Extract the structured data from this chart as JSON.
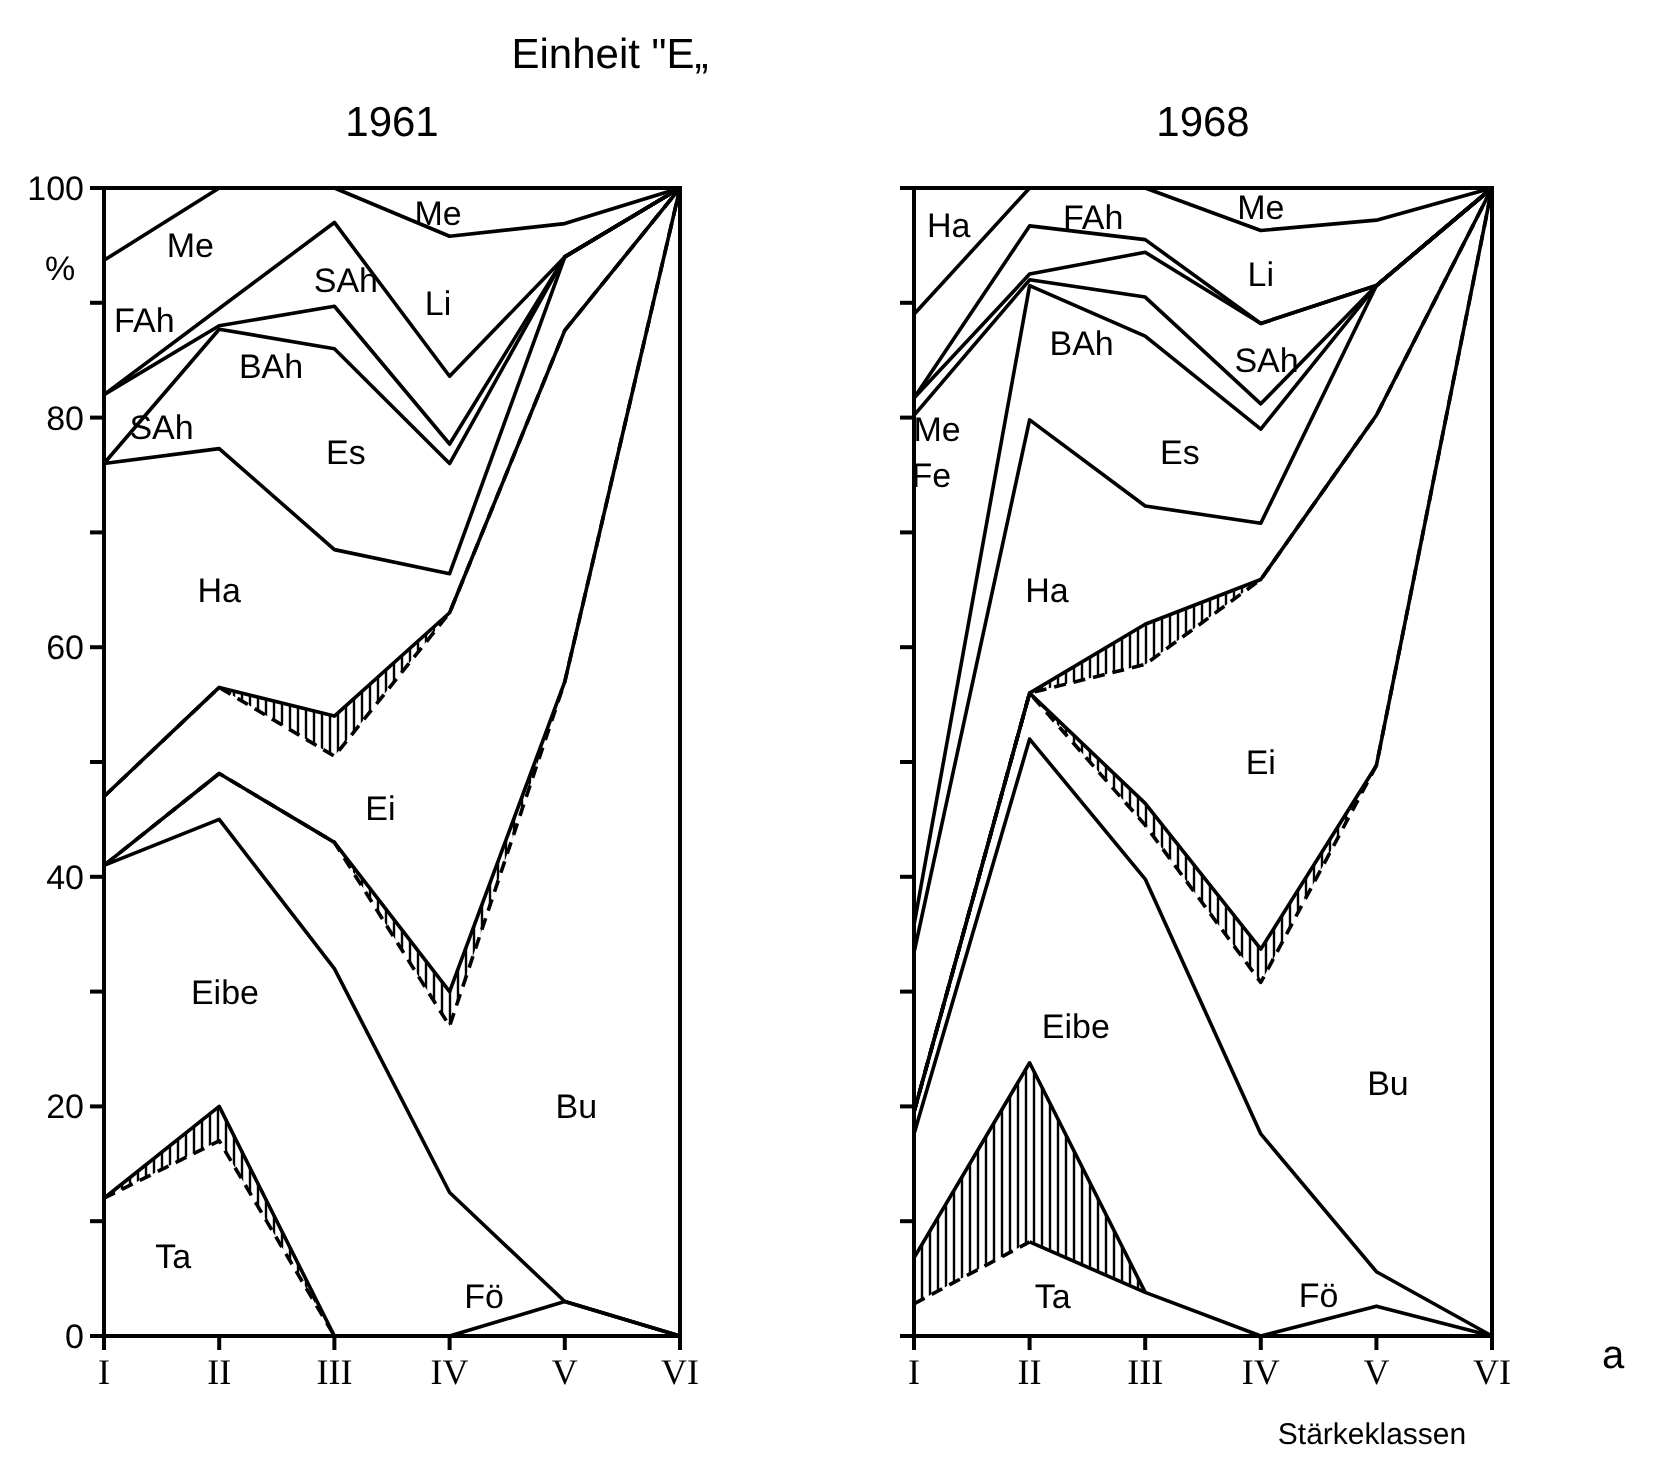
{
  "chart_data": [
    {
      "type": "line",
      "title": "Einheit \"E„",
      "subtitle": "1961",
      "ylabel": "%",
      "categories": [
        "I",
        "II",
        "III",
        "IV",
        "V",
        "VI"
      ],
      "ylim": [
        0,
        100
      ],
      "yticks": [
        0,
        {
          "value": 10,
          "label": null
        },
        20,
        {
          "value": 30,
          "label": null
        },
        40,
        {
          "value": 50,
          "label": null
        },
        60,
        {
          "value": 70,
          "label": null
        },
        80,
        {
          "value": 90,
          "label": null
        },
        100
      ],
      "grid": false,
      "series": [
        {
          "color": "#000000",
          "values": [
            null,
            null,
            null,
            0,
            3,
            0
          ]
        },
        {
          "color": "#000000",
          "values": [
            12,
            20,
            0,
            null,
            null,
            null
          ],
          "lower": [
            12,
            17,
            0,
            null,
            null,
            null
          ],
          "upper": [
            12,
            20,
            0,
            null,
            null,
            null
          ]
        },
        {
          "color": "#000000",
          "line_style": "dashed",
          "values": [
            12,
            17,
            0,
            null,
            null,
            null
          ]
        },
        {
          "color": "#000000",
          "values": [
            41,
            45,
            32,
            12.5,
            3,
            0
          ]
        },
        {
          "color": "#000000",
          "values": [
            41,
            49,
            43,
            30,
            57,
            100
          ],
          "lower": [
            41,
            49,
            43,
            27,
            57,
            100
          ],
          "upper": [
            41,
            49,
            43,
            30,
            57,
            100
          ]
        },
        {
          "color": "#000000",
          "line_style": "dashed",
          "values": [
            41,
            49,
            43,
            27,
            57,
            100
          ]
        },
        {
          "color": "#000000",
          "values": [
            47,
            56.5,
            54,
            63,
            87.6,
            100
          ],
          "lower": [
            47,
            56.5,
            50.5,
            63,
            87.6,
            100
          ],
          "upper": [
            47,
            56.5,
            54,
            63,
            87.6,
            100
          ]
        },
        {
          "color": "#000000",
          "line_style": "dashed",
          "values": [
            47,
            56.5,
            50.5,
            63,
            87.6,
            100
          ]
        },
        {
          "color": "#000000",
          "values": [
            76,
            77.3,
            68.5,
            66.4,
            94,
            100
          ]
        },
        {
          "color": "#000000",
          "values": [
            76,
            87.7,
            86,
            76,
            94,
            100
          ]
        },
        {
          "color": "#000000",
          "values": [
            82,
            88,
            89.7,
            77.7,
            94,
            100
          ]
        },
        {
          "color": "#000000",
          "values": [
            82,
            89.5,
            97,
            83.6,
            94,
            100
          ]
        },
        {
          "color": "#000000",
          "values": [
            93.7,
            100,
            100,
            95.8,
            96.9,
            100
          ]
        }
      ],
      "annotations": [
        "Me",
        "FAh",
        "SAh",
        "BAh",
        "SAh",
        "Es",
        "Li",
        "Me",
        "Ha",
        "Ei",
        "Eibe",
        "Bu",
        "Ta",
        "Fö"
      ]
    },
    {
      "type": "line",
      "subtitle": "1968",
      "xlabel": "Stärkeklassen",
      "categories": [
        "I",
        "II",
        "III",
        "IV",
        "V",
        "VI"
      ],
      "ylim": [
        0,
        100
      ],
      "yticks": [
        {
          "value": 0,
          "label": null
        },
        {
          "value": 10,
          "label": null
        },
        {
          "value": 20,
          "label": null
        },
        {
          "value": 30,
          "label": null
        },
        {
          "value": 40,
          "label": null
        },
        {
          "value": 50,
          "label": null
        },
        {
          "value": 60,
          "label": null
        },
        {
          "value": 70,
          "label": null
        },
        {
          "value": 80,
          "label": null
        },
        {
          "value": 90,
          "label": null
        },
        {
          "value": 100,
          "label": null
        }
      ],
      "tick_labels": "x",
      "grid": false,
      "series": [
        {
          "color": "#000000",
          "values": [
            null,
            8.2,
            3.8,
            0,
            2.6,
            0
          ]
        },
        {
          "color": "#000000",
          "values": [
            6.8,
            23.8,
            3.8,
            null,
            null,
            null
          ],
          "lower": [
            2.8,
            8.2,
            3.8,
            null,
            null,
            null
          ],
          "upper": [
            6.8,
            23.8,
            3.8,
            null,
            null,
            null
          ]
        },
        {
          "color": "#000000",
          "line_style": "dashed",
          "values": [
            2.8,
            8.2,
            null,
            null,
            null,
            null
          ]
        },
        {
          "color": "#000000",
          "values": [
            17.6,
            52,
            39.8,
            17.6,
            5.6,
            0
          ]
        },
        {
          "color": "#000000",
          "values": [
            19.5,
            56,
            46.4,
            33.7,
            49.7,
            100
          ],
          "lower": [
            19.5,
            56,
            44.5,
            30.8,
            49.7,
            100
          ],
          "upper": [
            19.5,
            56,
            46.4,
            33.7,
            49.7,
            100
          ]
        },
        {
          "color": "#000000",
          "line_style": "dashed",
          "values": [
            19.5,
            56,
            44.5,
            30.8,
            49.7,
            100
          ]
        },
        {
          "color": "#000000",
          "values": [
            19.5,
            56,
            62,
            65.9,
            80.2,
            100
          ],
          "lower": [
            null,
            56,
            58.5,
            65.9,
            null,
            null
          ],
          "upper": [
            null,
            56,
            62,
            65.9,
            null,
            null
          ]
        },
        {
          "color": "#000000",
          "line_style": "dashed",
          "values": [
            19.5,
            56,
            58.5,
            65.9,
            80.2,
            100
          ]
        },
        {
          "color": "#000000",
          "values": [
            33.4,
            79.8,
            72.3,
            70.8,
            91.5,
            100
          ]
        },
        {
          "color": "#000000",
          "values": [
            35.8,
            91.5,
            87.1,
            79,
            91.5,
            100
          ]
        },
        {
          "color": "#000000",
          "values": [
            80.2,
            92,
            90.5,
            81.2,
            91.5,
            100
          ]
        },
        {
          "color": "#000000",
          "values": [
            81.7,
            92.5,
            94.4,
            88.2,
            91.5,
            100
          ]
        },
        {
          "color": "#000000",
          "values": [
            81.7,
            96.7,
            95.5,
            88.2,
            91.5,
            100
          ]
        },
        {
          "color": "#000000",
          "values": [
            89,
            100,
            100,
            96.3,
            97.2,
            100
          ]
        }
      ],
      "annotations": [
        "Ha",
        "Me",
        "Fe",
        "FAh",
        "BAh",
        "Li",
        "SAh",
        "Me",
        "Es",
        "Ha",
        "Ei",
        "Eibe",
        "Bu",
        "Ta",
        "Fö",
        "a"
      ]
    }
  ]
}
